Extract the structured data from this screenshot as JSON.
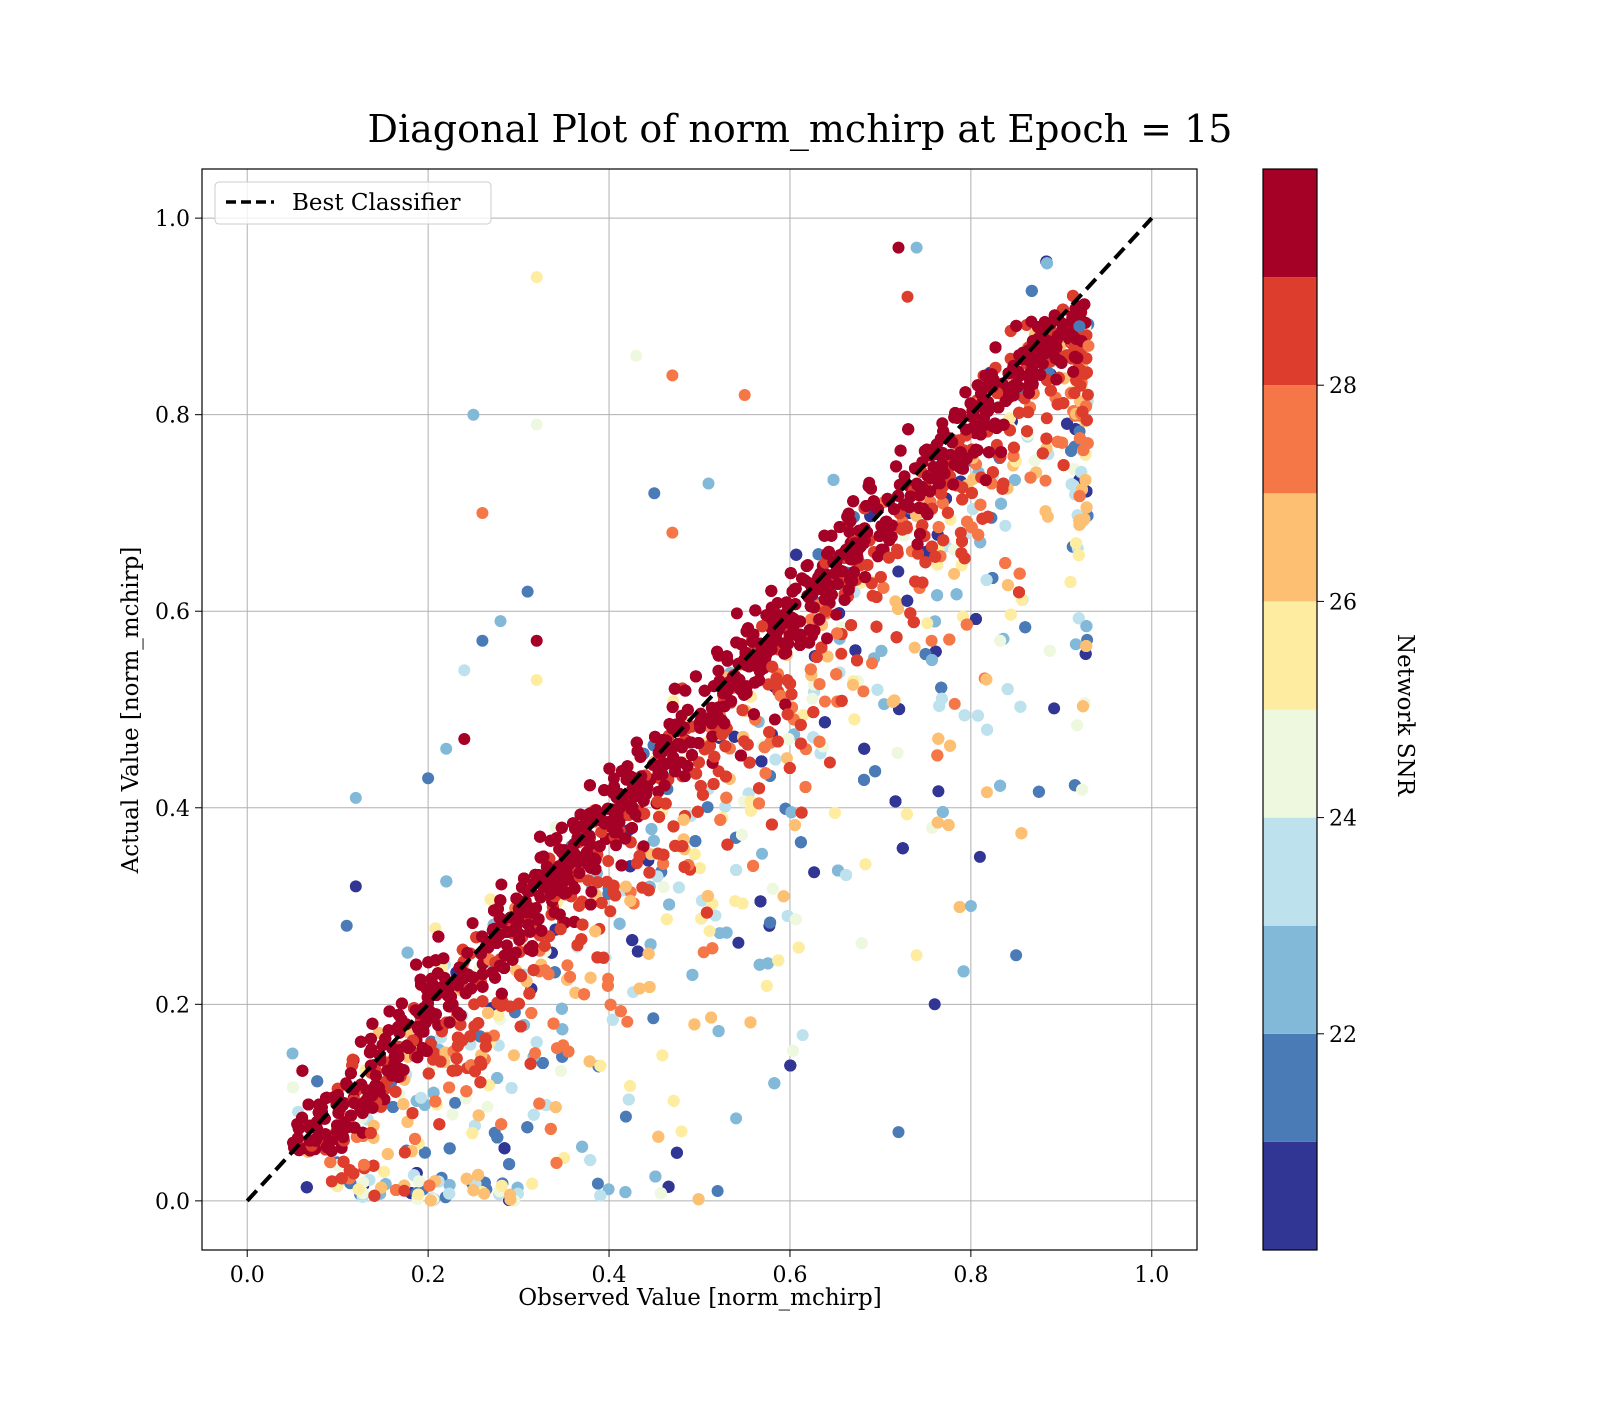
{
  "chart_data": {
    "type": "scatter",
    "title": "Diagonal Plot of norm_mchirp at Epoch = 15",
    "xlabel": "Observed Value [norm_mchirp]",
    "ylabel": "Actual Value [norm_mchirp]",
    "xlim": [
      -0.05,
      1.05
    ],
    "ylim": [
      -0.05,
      1.05
    ],
    "xticks": [
      "0.0",
      "0.2",
      "0.4",
      "0.6",
      "0.8",
      "1.0"
    ],
    "yticks": [
      "0.0",
      "0.2",
      "0.4",
      "0.6",
      "0.8",
      "1.0"
    ],
    "grid": true,
    "legend": {
      "placement": "top-left",
      "entries": [
        {
          "label": "Best Classifier",
          "style": "black dashed line"
        }
      ]
    },
    "reference_line": {
      "x": [
        0.0,
        1.0
      ],
      "y": [
        0.0,
        1.0
      ],
      "style": "dashed",
      "color": "#000000"
    },
    "colorbar": {
      "label": "Network SNR",
      "range": [
        20.0,
        30.0
      ],
      "ticks": [
        "22",
        "24",
        "26",
        "28"
      ],
      "levels": [
        {
          "from": 20.0,
          "to": 21.0,
          "color": "#313695"
        },
        {
          "from": 21.0,
          "to": 22.0,
          "color": "#4a7bb7"
        },
        {
          "from": 22.0,
          "to": 23.0,
          "color": "#83b9d8"
        },
        {
          "from": 23.0,
          "to": 24.0,
          "color": "#bde2ee"
        },
        {
          "from": 24.0,
          "to": 25.0,
          "color": "#eef8df"
        },
        {
          "from": 25.0,
          "to": 26.0,
          "color": "#feeda1"
        },
        {
          "from": 26.0,
          "to": 27.0,
          "color": "#fdbf71"
        },
        {
          "from": 27.0,
          "to": 28.0,
          "color": "#f57748"
        },
        {
          "from": 28.0,
          "to": 29.0,
          "color": "#dd3d2d"
        },
        {
          "from": 29.0,
          "to": 30.0,
          "color": "#a50026"
        }
      ]
    },
    "series": [
      {
        "description_of_distribution": "approx. points along diagonal; high SNR points tight to y=x, low SNR points scattered, mostly below diagonal",
        "points": [
          {
            "x": 0.32,
            "y": 0.94,
            "snr": 25.5
          },
          {
            "x": 0.43,
            "y": 0.86,
            "snr": 24.5
          },
          {
            "x": 0.47,
            "y": 0.84,
            "snr": 27.5
          },
          {
            "x": 0.55,
            "y": 0.82,
            "snr": 27.5
          },
          {
            "x": 0.25,
            "y": 0.8,
            "snr": 22.5
          },
          {
            "x": 0.32,
            "y": 0.79,
            "snr": 24.5
          },
          {
            "x": 0.45,
            "y": 0.72,
            "snr": 21.5
          },
          {
            "x": 0.51,
            "y": 0.73,
            "snr": 22.5
          },
          {
            "x": 0.26,
            "y": 0.7,
            "snr": 27.5
          },
          {
            "x": 0.47,
            "y": 0.68,
            "snr": 27.5
          },
          {
            "x": 0.31,
            "y": 0.62,
            "snr": 21.5
          },
          {
            "x": 0.28,
            "y": 0.59,
            "snr": 22.5
          },
          {
            "x": 0.26,
            "y": 0.57,
            "snr": 21.5
          },
          {
            "x": 0.32,
            "y": 0.57,
            "snr": 29.5
          },
          {
            "x": 0.24,
            "y": 0.54,
            "snr": 23.5
          },
          {
            "x": 0.32,
            "y": 0.53,
            "snr": 25.5
          },
          {
            "x": 0.24,
            "y": 0.47,
            "snr": 29.5
          },
          {
            "x": 0.22,
            "y": 0.46,
            "snr": 22.5
          },
          {
            "x": 0.2,
            "y": 0.43,
            "snr": 21.5
          },
          {
            "x": 0.12,
            "y": 0.41,
            "snr": 22.5
          },
          {
            "x": 0.12,
            "y": 0.32,
            "snr": 20.5
          },
          {
            "x": 0.11,
            "y": 0.28,
            "snr": 21.5
          },
          {
            "x": 0.05,
            "y": 0.15,
            "snr": 22.5
          },
          {
            "x": 0.72,
            "y": 0.07,
            "snr": 21.5
          },
          {
            "x": 0.52,
            "y": 0.01,
            "snr": 21.5
          },
          {
            "x": 0.85,
            "y": 0.25,
            "snr": 21.5
          },
          {
            "x": 0.8,
            "y": 0.3,
            "snr": 22.5
          },
          {
            "x": 0.81,
            "y": 0.35,
            "snr": 20.5
          },
          {
            "x": 0.76,
            "y": 0.2,
            "snr": 20.5
          },
          {
            "x": 0.74,
            "y": 0.25,
            "snr": 25.5
          },
          {
            "x": 0.72,
            "y": 0.97,
            "snr": 29.5
          },
          {
            "x": 0.74,
            "y": 0.97,
            "snr": 22.5
          },
          {
            "x": 0.73,
            "y": 0.92,
            "snr": 28.5
          },
          {
            "x": 0.92,
            "y": 0.89,
            "snr": 21.5
          },
          {
            "x": 0.93,
            "y": 0.87,
            "snr": 27.5
          }
        ],
        "dense_band": {
          "note": "thousands of points densely packed around y = x (0.0 to 1.0) with additional spread below the diagonal",
          "x_range": [
            0.05,
            0.93
          ],
          "y_range": [
            0.0,
            0.99
          ]
        }
      }
    ]
  }
}
